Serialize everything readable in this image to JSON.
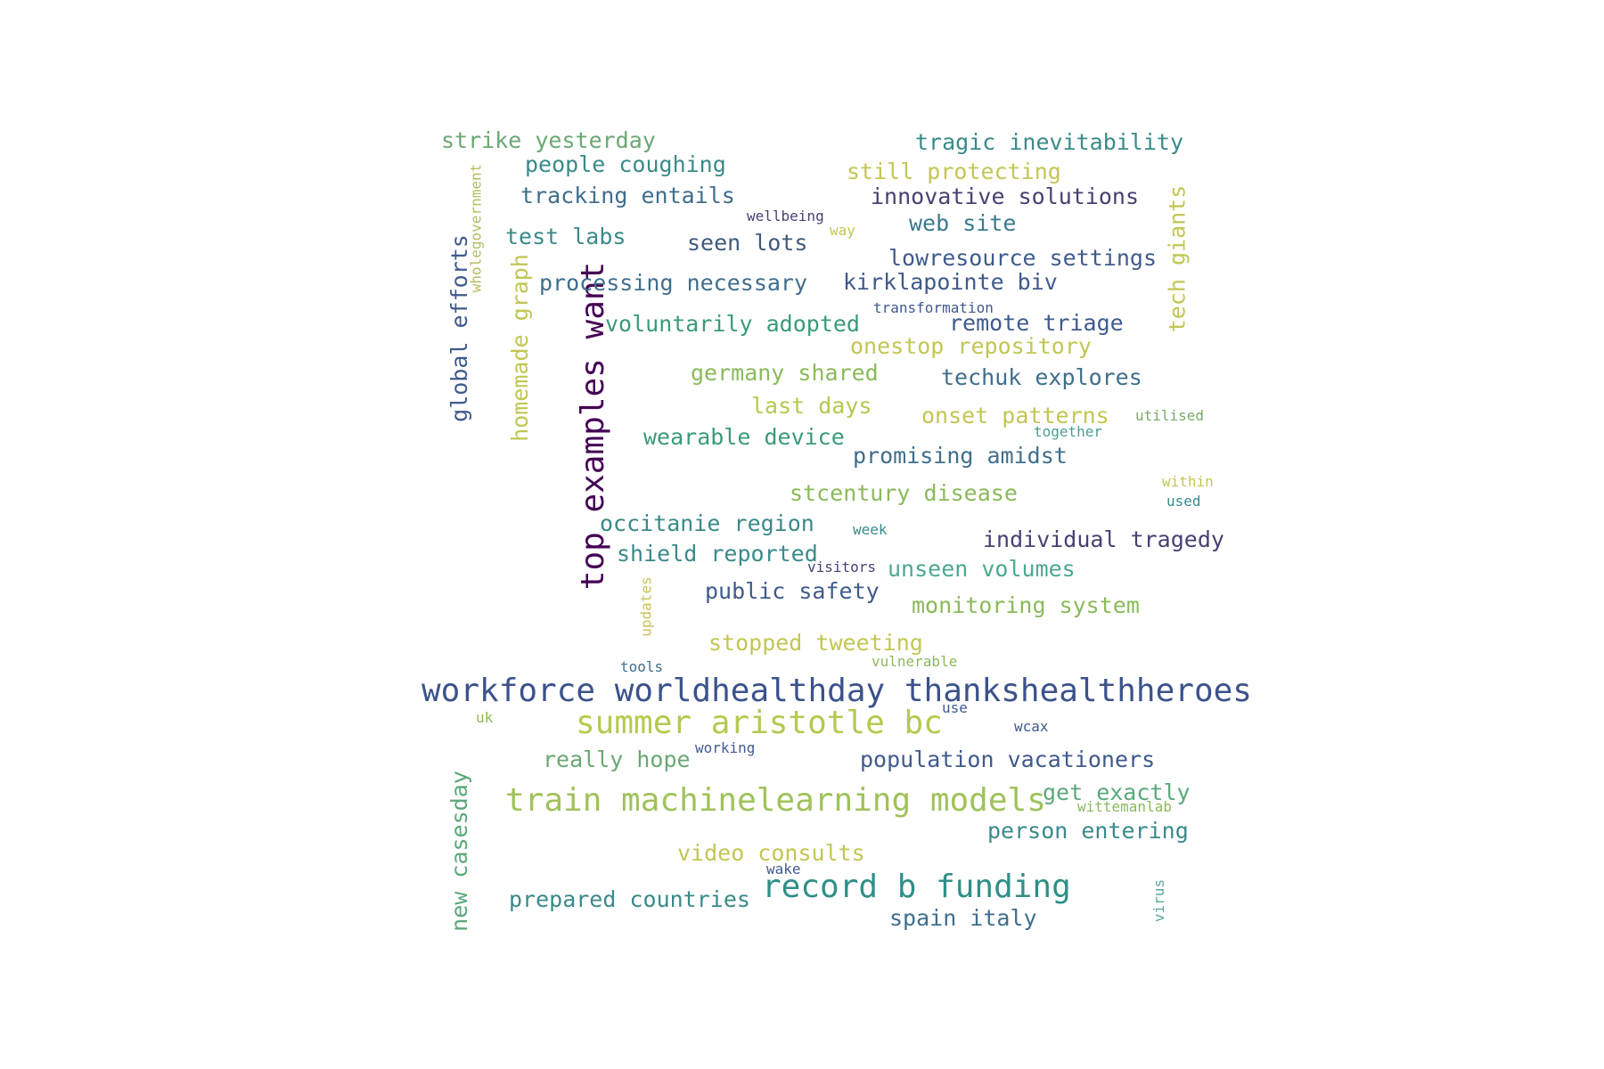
{
  "palette": {
    "dark_purple": "#440154",
    "indigo": "#414487",
    "slate_blue": "#3b528b",
    "teal_blue": "#31688e",
    "teal": "#26828e",
    "sea_green": "#1f9e89",
    "green": "#35b779",
    "sage": "#6ece58",
    "olive_green": "#9fc25a",
    "yellow_green": "#c2c653",
    "muted_teal": "#4c9c8f",
    "muted_green": "#6aa873"
  },
  "words": [
    {
      "text": "top examples want",
      "color": "#440154"
    },
    {
      "text": "workforce worldhealthday thankshealthheroes",
      "color": "#3b528b"
    },
    {
      "text": "train machinelearning models",
      "color": "#9fc25a"
    },
    {
      "text": "summer aristotle bc",
      "color": "#b5c94f"
    },
    {
      "text": "record b funding",
      "color": "#2f8f88"
    },
    {
      "text": "global efforts",
      "color": "#3f5a8c"
    },
    {
      "text": "homemade graph",
      "color": "#c2c653"
    },
    {
      "text": "tech giants",
      "color": "#c2c653"
    },
    {
      "text": "new casesday",
      "color": "#5aa87a"
    },
    {
      "text": "wholegovernment",
      "color": "#b5bb61"
    },
    {
      "text": "updates",
      "color": "#c9c15a"
    },
    {
      "text": "virus",
      "color": "#5aa99a"
    },
    {
      "text": "strike yesterday",
      "color": "#6aa873"
    },
    {
      "text": "tragic inevitability",
      "color": "#3a8a8a"
    },
    {
      "text": "people coughing",
      "color": "#3a8a8a"
    },
    {
      "text": "still protecting",
      "color": "#c2c653"
    },
    {
      "text": "tracking entails",
      "color": "#3f6e8c"
    },
    {
      "text": "innovative solutions",
      "color": "#4a3f72"
    },
    {
      "text": "wellbeing",
      "color": "#4a3f72"
    },
    {
      "text": "way",
      "color": "#c2c653"
    },
    {
      "text": "web site",
      "color": "#3a7a8c"
    },
    {
      "text": "test labs",
      "color": "#3a8a8a"
    },
    {
      "text": "seen lots",
      "color": "#3f5a7c"
    },
    {
      "text": "lowresource settings",
      "color": "#3f5a8c"
    },
    {
      "text": "processing necessary",
      "color": "#3f6e8c"
    },
    {
      "text": "kirklapointe biv",
      "color": "#3f5a8c"
    },
    {
      "text": "transformation",
      "color": "#3f5a8c"
    },
    {
      "text": "voluntarily adopted",
      "color": "#3a9a7a"
    },
    {
      "text": "remote triage",
      "color": "#3f5a8c"
    },
    {
      "text": "onestop repository",
      "color": "#c2c653"
    },
    {
      "text": "germany shared",
      "color": "#8aba5a"
    },
    {
      "text": "techuk explores",
      "color": "#3f6e8c"
    },
    {
      "text": "last days",
      "color": "#b5c94f"
    },
    {
      "text": "onset patterns",
      "color": "#c2c653"
    },
    {
      "text": "utilised",
      "color": "#7aaa6a"
    },
    {
      "text": "together",
      "color": "#4c9c8f"
    },
    {
      "text": "wearable device",
      "color": "#3a9a7a"
    },
    {
      "text": "promising amidst",
      "color": "#3f6e8c"
    },
    {
      "text": "stcentury disease",
      "color": "#8aba5a"
    },
    {
      "text": "within",
      "color": "#c2c653"
    },
    {
      "text": "used",
      "color": "#3a8a8a"
    },
    {
      "text": "occitanie region",
      "color": "#3a8a8a"
    },
    {
      "text": "week",
      "color": "#3a8a8a"
    },
    {
      "text": "individual tragedy",
      "color": "#4a3f72"
    },
    {
      "text": "shield reported",
      "color": "#3a8a8a"
    },
    {
      "text": "visitors",
      "color": "#4a3f72"
    },
    {
      "text": "unseen volumes",
      "color": "#4ca88f"
    },
    {
      "text": "public safety",
      "color": "#3f5a8c"
    },
    {
      "text": "monitoring system",
      "color": "#8aba5a"
    },
    {
      "text": "stopped tweeting",
      "color": "#c2c653"
    },
    {
      "text": "tools",
      "color": "#3f6e8c"
    },
    {
      "text": "vulnerable",
      "color": "#8aba5a"
    },
    {
      "text": "use",
      "color": "#3f5a8c"
    },
    {
      "text": "uk",
      "color": "#8aba5a"
    },
    {
      "text": "wcax",
      "color": "#3f5a8c"
    },
    {
      "text": "working",
      "color": "#3f5a8c"
    },
    {
      "text": "really hope",
      "color": "#6aa873"
    },
    {
      "text": "population vacationers",
      "color": "#3f5a8c"
    },
    {
      "text": "get exactly",
      "color": "#5aa87a"
    },
    {
      "text": "wittemanlab",
      "color": "#8aba5a"
    },
    {
      "text": "person entering",
      "color": "#3a8a8a"
    },
    {
      "text": "video consults",
      "color": "#c2c653"
    },
    {
      "text": "wake",
      "color": "#3f5a8c"
    },
    {
      "text": "prepared countries",
      "color": "#3a8a8a"
    },
    {
      "text": "spain italy",
      "color": "#3f6e8c"
    }
  ]
}
